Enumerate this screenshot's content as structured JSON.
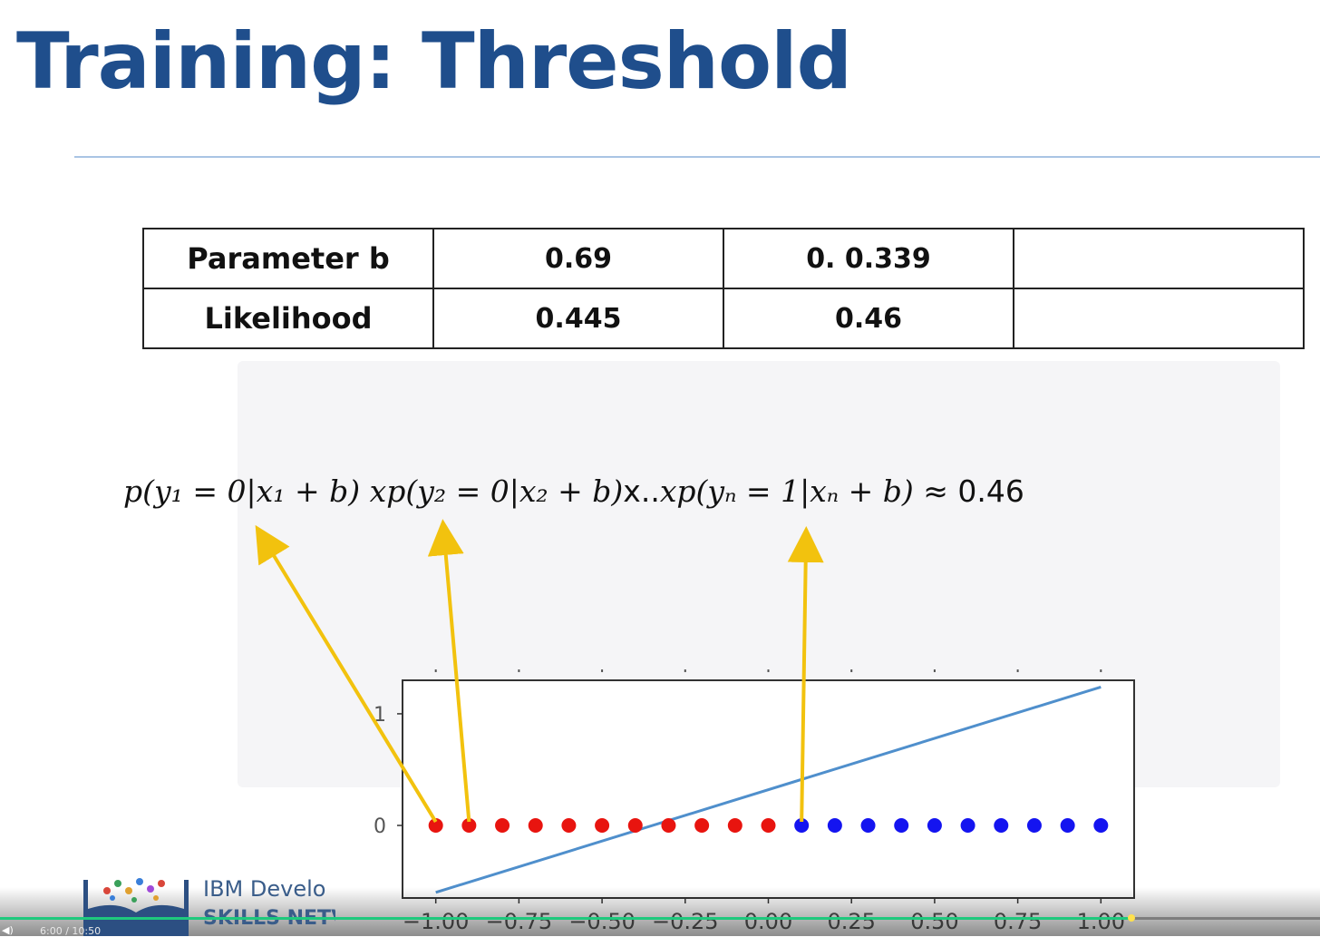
{
  "slide": {
    "title": "Training: Threshold"
  },
  "table": {
    "rows": [
      {
        "label": "Parameter b",
        "values": [
          "0.69",
          "0. 0.339",
          ""
        ]
      },
      {
        "label": "Likelihood",
        "values": [
          "0.445",
          "0.46",
          ""
        ]
      }
    ]
  },
  "equation": {
    "term1": "p(y₁ = 0|x₁ + b)",
    "term2": "xp(y₂ = 0|x₂ + b)",
    "joiner": "x..",
    "term3": "xp(yₙ = 1|xₙ + b)",
    "result": "≈ 0.46"
  },
  "chart_data": {
    "type": "scatter",
    "xlim": [
      -1.1,
      1.1
    ],
    "ylim": [
      -0.65,
      1.3
    ],
    "x_ticks": [
      "−1.00",
      "−0.75",
      "−0.50",
      "−0.25",
      "0.00",
      "0.25",
      "0.50",
      "0.75",
      "1.00"
    ],
    "x_tick_values": [
      -1.0,
      -0.75,
      -0.5,
      -0.25,
      0.0,
      0.25,
      0.5,
      0.75,
      1.0
    ],
    "y_ticks": [
      "0",
      "1"
    ],
    "y_tick_values": [
      0,
      1
    ],
    "grid": false,
    "class_0_points": {
      "color": "#e8140f",
      "x": [
        -1.0,
        -0.9,
        -0.8,
        -0.7,
        -0.6,
        -0.5,
        -0.4,
        -0.3,
        -0.2,
        -0.1,
        0.0
      ],
      "y": [
        0,
        0,
        0,
        0,
        0,
        0,
        0,
        0,
        0,
        0,
        0
      ]
    },
    "class_1_points": {
      "color": "#1414f0",
      "x": [
        0.1,
        0.2,
        0.3,
        0.4,
        0.5,
        0.6,
        0.7,
        0.8,
        0.9,
        1.0
      ],
      "y": [
        0,
        0,
        0,
        0,
        0,
        0,
        0,
        0,
        0,
        0
      ]
    },
    "line": {
      "color": "#4f8fcc",
      "x": [
        -1.0,
        1.0
      ],
      "y": [
        -0.6,
        1.24
      ]
    }
  },
  "annotations": {
    "arrow_color": "#f2c20e"
  },
  "footer": {
    "brand_line1": "IBM Develo",
    "brand_line2": "SKILLS NETV",
    "time_text": "6:00 / 10:50",
    "volume_icon": "volume-icon",
    "progress": 0.857
  }
}
